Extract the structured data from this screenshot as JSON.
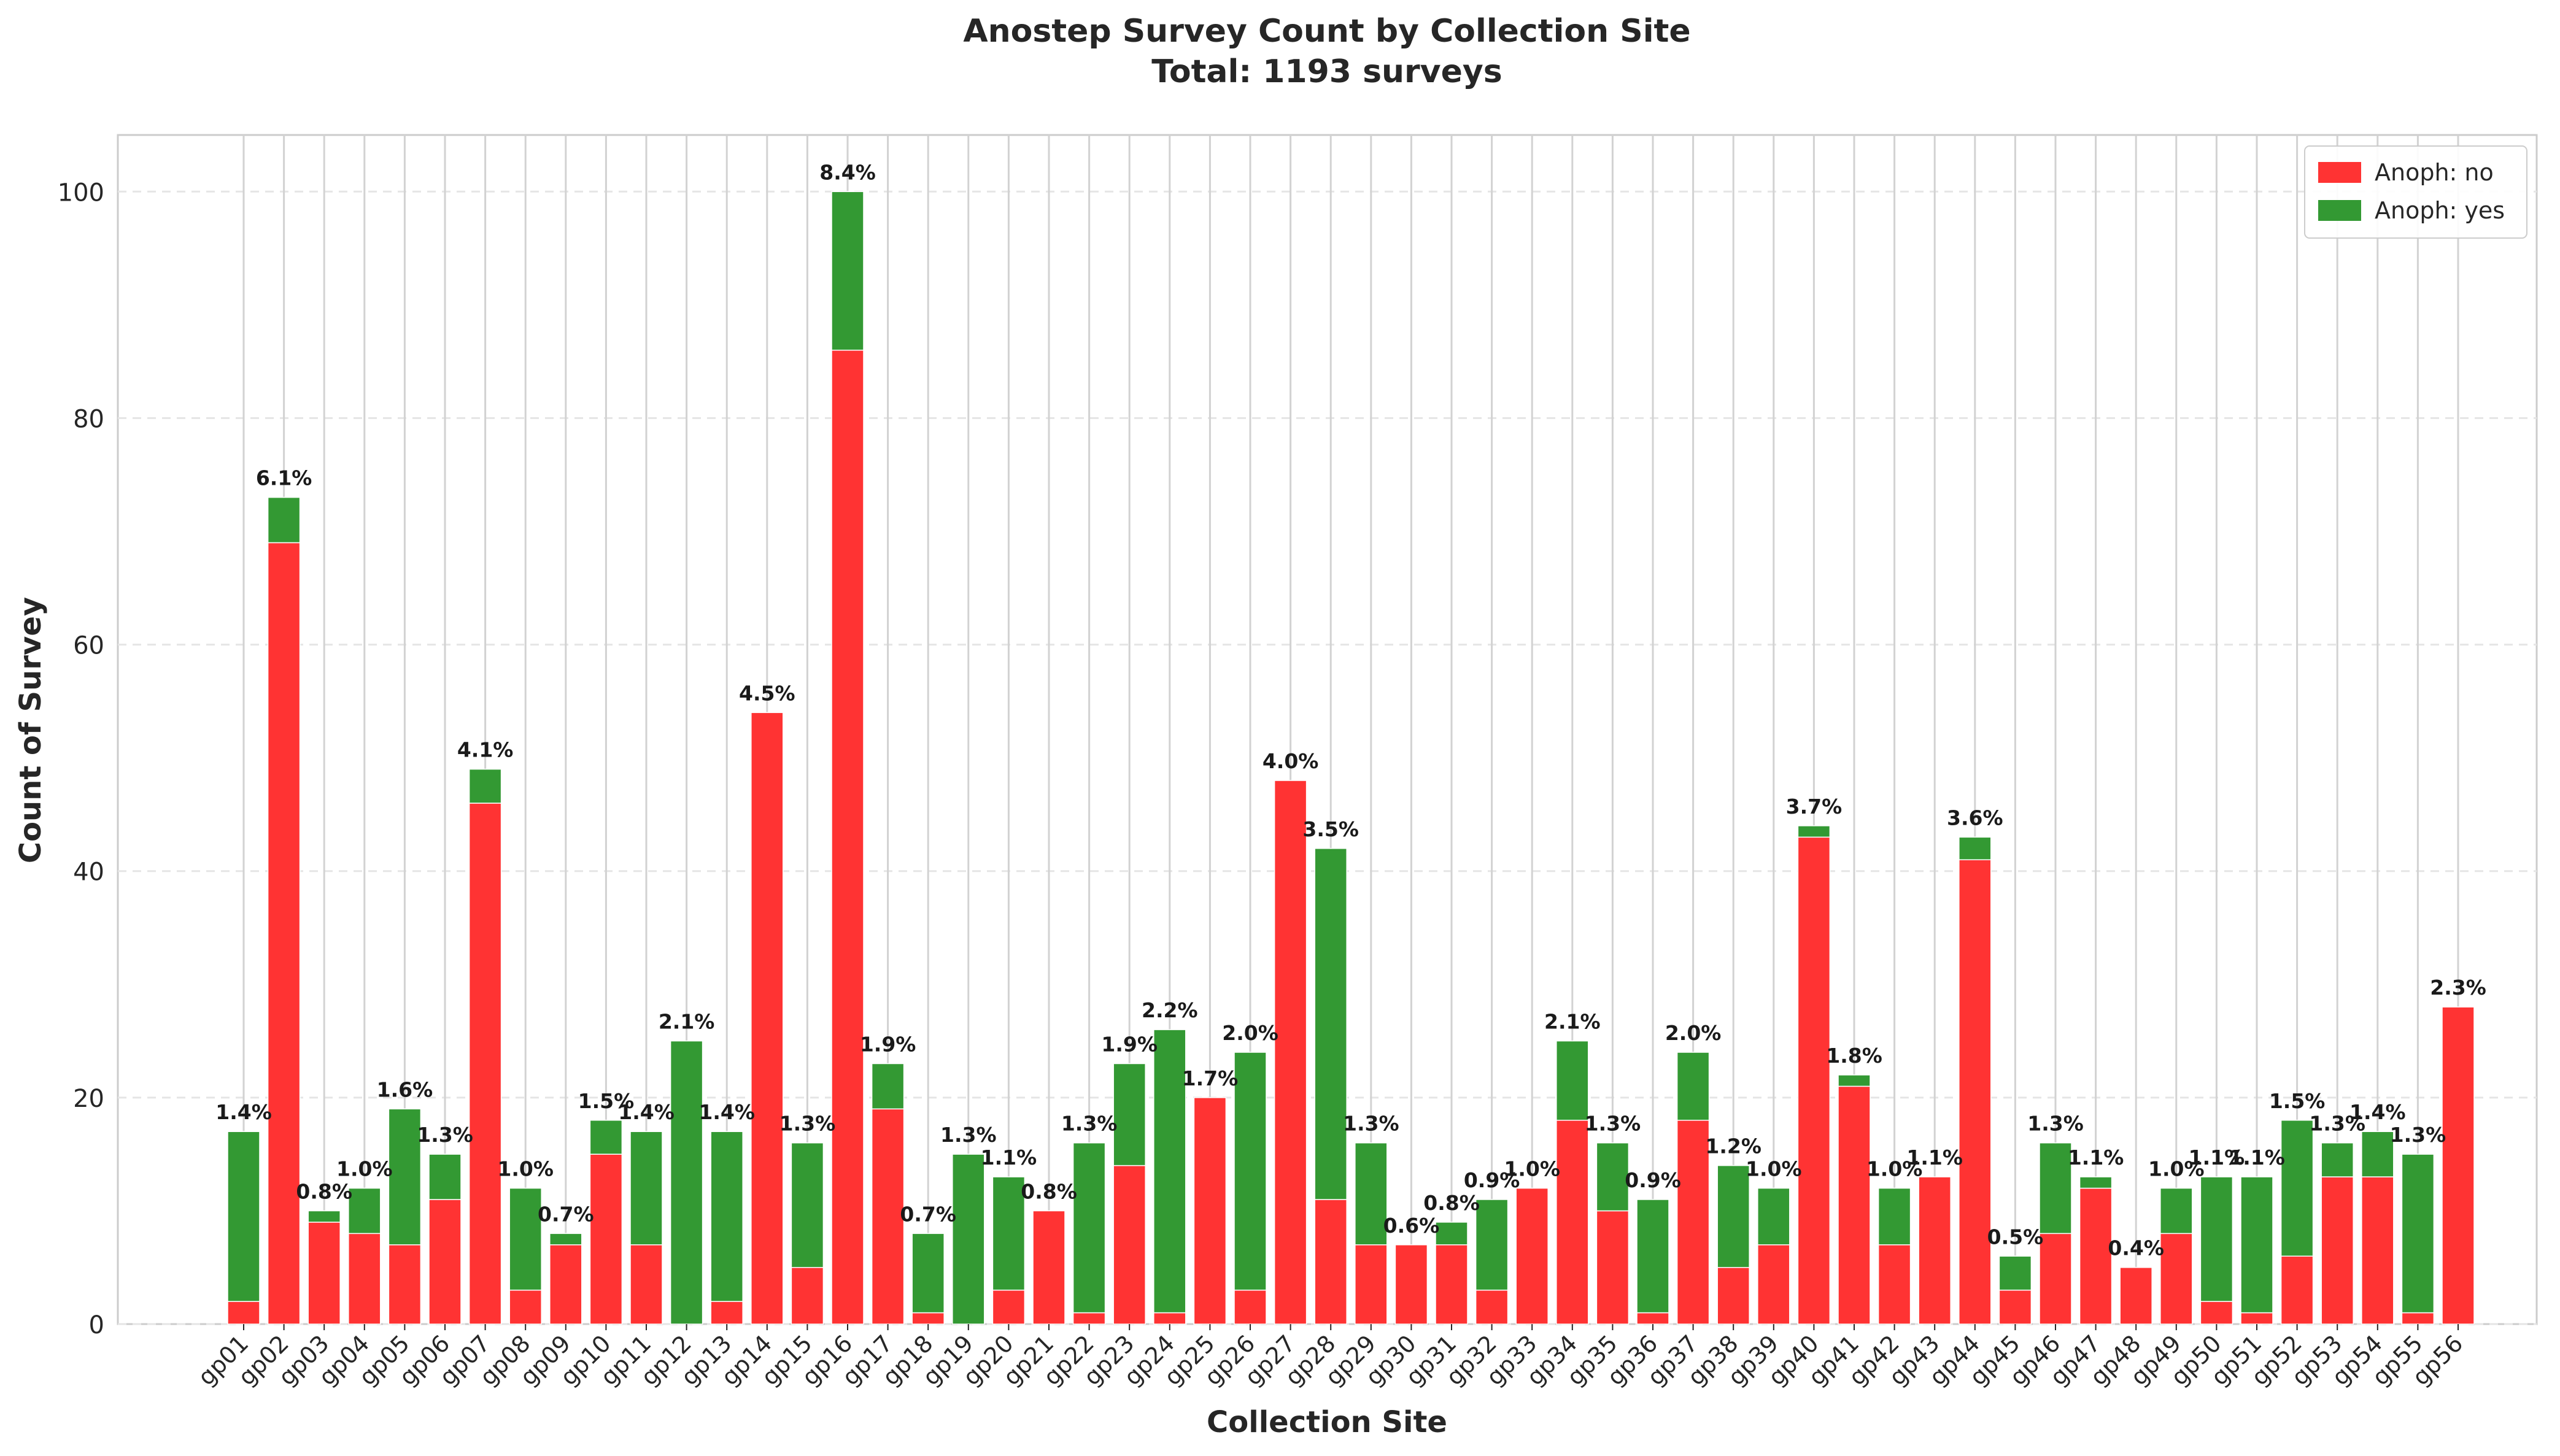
{
  "chart_data": {
    "type": "bar",
    "stacked": true,
    "title": "Anostep Survey Count by Collection Site",
    "subtitle": "Total: 1193 surveys",
    "xlabel": "Collection Site",
    "ylabel": "Count of Survey",
    "ylim": [
      0,
      105
    ],
    "yticks": [
      0,
      20,
      40,
      60,
      80,
      100
    ],
    "grid": true,
    "legend_position": "top-right",
    "colors": {
      "no": "#ff3333",
      "yes": "#339933"
    },
    "categories": [
      "gp01",
      "gp02",
      "gp03",
      "gp04",
      "gp05",
      "gp06",
      "gp07",
      "gp08",
      "gp09",
      "gp10",
      "gp11",
      "gp12",
      "gp13",
      "gp14",
      "gp15",
      "gp16",
      "gp17",
      "gp18",
      "gp19",
      "gp20",
      "gp21",
      "gp22",
      "gp23",
      "gp24",
      "gp25",
      "gp26",
      "gp27",
      "gp28",
      "gp29",
      "gp30",
      "gp31",
      "gp32",
      "gp33",
      "gp34",
      "gp35",
      "gp36",
      "gp37",
      "gp38",
      "gp39",
      "gp40",
      "gp41",
      "gp42",
      "gp43",
      "gp44",
      "gp45",
      "gp46",
      "gp47",
      "gp48",
      "gp49",
      "gp50",
      "gp51",
      "gp52",
      "gp53",
      "gp54",
      "gp55",
      "gp56"
    ],
    "series": [
      {
        "name": "Anoph: no",
        "values": [
          2,
          69,
          9,
          8,
          7,
          11,
          46,
          3,
          7,
          15,
          7,
          0,
          2,
          54,
          5,
          86,
          19,
          1,
          0,
          3,
          10,
          1,
          14,
          1,
          20,
          3,
          48,
          11,
          7,
          7,
          7,
          3,
          12,
          18,
          10,
          1,
          18,
          5,
          7,
          43,
          21,
          7,
          13,
          41,
          3,
          8,
          12,
          5,
          8,
          2,
          1,
          6,
          13,
          13,
          1,
          28
        ]
      },
      {
        "name": "Anoph: yes",
        "values": [
          15,
          4,
          1,
          4,
          12,
          4,
          3,
          9,
          1,
          3,
          10,
          25,
          15,
          0,
          11,
          14,
          4,
          7,
          15,
          10,
          0,
          15,
          9,
          25,
          0,
          21,
          0,
          31,
          9,
          0,
          2,
          8,
          0,
          7,
          6,
          10,
          6,
          9,
          5,
          1,
          1,
          5,
          0,
          2,
          3,
          8,
          1,
          0,
          4,
          11,
          12,
          12,
          3,
          4,
          14,
          0
        ]
      }
    ],
    "labels": [
      "1.4%",
      "6.1%",
      "0.8%",
      "1.0%",
      "1.6%",
      "1.3%",
      "4.1%",
      "1.0%",
      "0.7%",
      "1.5%",
      "1.4%",
      "2.1%",
      "1.4%",
      "4.5%",
      "1.3%",
      "8.4%",
      "1.9%",
      "0.7%",
      "1.3%",
      "1.1%",
      "0.8%",
      "1.3%",
      "1.9%",
      "2.2%",
      "1.7%",
      "2.0%",
      "4.0%",
      "3.5%",
      "1.3%",
      "0.6%",
      "0.8%",
      "0.9%",
      "1.0%",
      "2.1%",
      "1.3%",
      "0.9%",
      "2.0%",
      "1.2%",
      "1.0%",
      "3.7%",
      "1.8%",
      "1.0%",
      "1.1%",
      "3.6%",
      "0.5%",
      "1.3%",
      "1.1%",
      "0.4%",
      "1.0%",
      "1.1%",
      "1.1%",
      "1.5%",
      "1.3%",
      "1.4%",
      "1.3%",
      "2.3%"
    ]
  }
}
